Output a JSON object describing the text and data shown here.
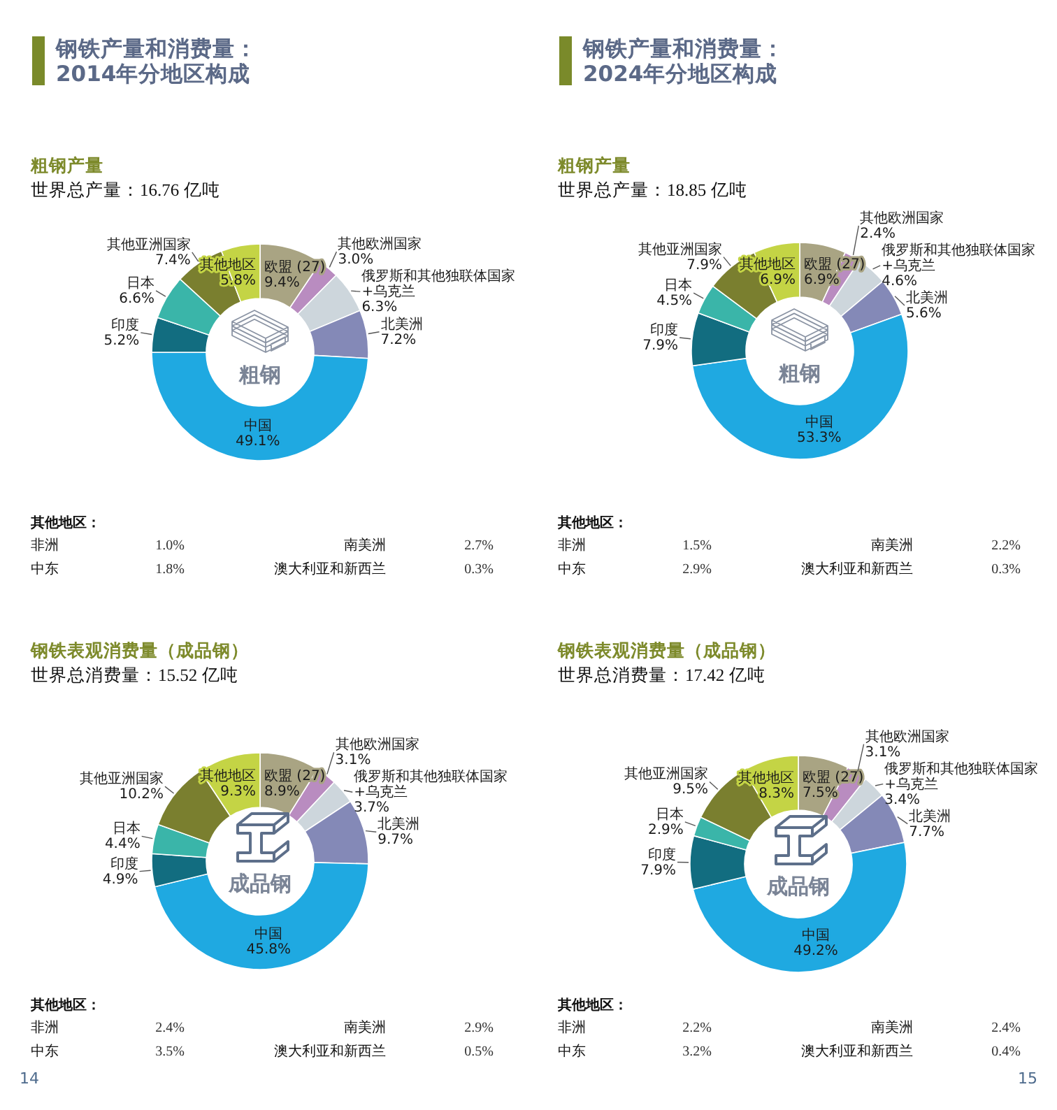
{
  "chart_data": [
    {
      "type": "other",
      "title": "钢铁产量和消费量：\n2014年分地区构成"
    },
    {
      "type": "donut",
      "title": "粗钢产量",
      "subtitle": "世界总产量：16.76 亿吨",
      "categories": [
        "欧盟 (27)",
        "其他欧洲国家",
        "俄罗斯和其他独联体国家\n+乌克兰",
        "北美洲",
        "中国",
        "印度",
        "日本",
        "其他亚洲国家",
        "其他地区"
      ],
      "values": [
        9.4,
        3.0,
        6.3,
        7.2,
        49.1,
        5.2,
        6.6,
        7.4,
        5.8
      ],
      "value_labels": [
        "9.4%",
        "3.0%",
        "6.3%",
        "7.2%",
        "49.1%",
        "5.2%",
        "6.6%",
        "7.4%",
        "5.8%"
      ],
      "colors": [
        "#a9a483",
        "#b98cc0",
        "#cdd6dc",
        "#8489b7",
        "#1fa9e1",
        "#126d80",
        "#3ab5a9",
        "#7a7f2f",
        "#c4d445"
      ],
      "annotations": [
        "粗钢",
        "其他地区：",
        "非洲",
        "1.0%",
        "南美洲",
        "2.7%",
        "中东",
        "1.8%",
        "澳大利亚和新西兰",
        "0.3%"
      ]
    },
    {
      "type": "donut",
      "title": "钢铁表观消费量（成品钢）",
      "subtitle": "世界总消费量：15.52 亿吨",
      "categories": [
        "欧盟 (27)",
        "其他欧洲国家",
        "俄罗斯和其他独联体国家\n+乌克兰",
        "北美洲",
        "中国",
        "印度",
        "日本",
        "其他亚洲国家",
        "其他地区"
      ],
      "values": [
        8.9,
        3.1,
        3.7,
        9.7,
        45.8,
        4.9,
        4.4,
        10.2,
        9.3
      ],
      "value_labels": [
        "8.9%",
        "3.1%",
        "3.7%",
        "9.7%",
        "45.8%",
        "4.9%",
        "4.4%",
        "10.2%",
        "9.3%"
      ],
      "colors": [
        "#a9a483",
        "#b98cc0",
        "#cdd6dc",
        "#8489b7",
        "#1fa9e1",
        "#126d80",
        "#3ab5a9",
        "#7a7f2f",
        "#c4d445"
      ],
      "annotations": [
        "成品钢",
        "其他地区：",
        "非洲",
        "2.4%",
        "南美洲",
        "2.9%",
        "中东",
        "3.5%",
        "澳大利亚和新西兰",
        "0.5%",
        "14"
      ]
    },
    {
      "type": "other",
      "title": "钢铁产量和消费量：\n2024年分地区构成"
    },
    {
      "type": "donut",
      "title": "粗钢产量",
      "subtitle": "世界总产量：18.85 亿吨",
      "categories": [
        "欧盟 (27)",
        "其他欧洲国家",
        "俄罗斯和其他独联体国家\n+乌克兰",
        "北美洲",
        "中国",
        "印度",
        "日本",
        "其他亚洲国家",
        "其他地区"
      ],
      "values": [
        6.9,
        2.4,
        4.6,
        5.6,
        53.3,
        7.9,
        4.5,
        7.9,
        6.9
      ],
      "value_labels": [
        "6.9%",
        "2.4%",
        "4.6%",
        "5.6%",
        "53.3%",
        "7.9%",
        "4.5%",
        "7.9%",
        "6.9%"
      ],
      "colors": [
        "#a9a483",
        "#b98cc0",
        "#cdd6dc",
        "#8489b7",
        "#1fa9e1",
        "#126d80",
        "#3ab5a9",
        "#7a7f2f",
        "#c4d445"
      ],
      "annotations": [
        "粗钢",
        "其他地区：",
        "非洲",
        "1.5%",
        "南美洲",
        "2.2%",
        "中东",
        "2.9%",
        "澳大利亚和新西兰",
        "0.3%"
      ]
    },
    {
      "type": "donut",
      "title": "钢铁表观消费量（成品钢）",
      "subtitle": "世界总消费量：17.42 亿吨",
      "categories": [
        "欧盟 (27)",
        "其他欧洲国家",
        "俄罗斯和其他独联体国家\n+乌克兰",
        "北美洲",
        "中国",
        "印度",
        "日本",
        "其他亚洲国家",
        "其他地区"
      ],
      "values": [
        7.5,
        3.1,
        3.4,
        7.7,
        49.2,
        7.9,
        2.9,
        9.5,
        8.3
      ],
      "value_labels": [
        "7.5%",
        "3.1%",
        "3.4%",
        "7.7%",
        "49.2%",
        "7.9%",
        "2.9%",
        "9.5%",
        "8.3%"
      ],
      "colors": [
        "#a9a483",
        "#b98cc0",
        "#cdd6dc",
        "#8489b7",
        "#1fa9e1",
        "#126d80",
        "#3ab5a9",
        "#7a7f2f",
        "#c4d445"
      ],
      "annotations": [
        "成品钢",
        "其他地区：",
        "非洲",
        "2.2%",
        "南美洲",
        "2.4%",
        "中东",
        "3.2%",
        "澳大利亚和新西兰",
        "0.4%",
        "15"
      ]
    }
  ]
}
